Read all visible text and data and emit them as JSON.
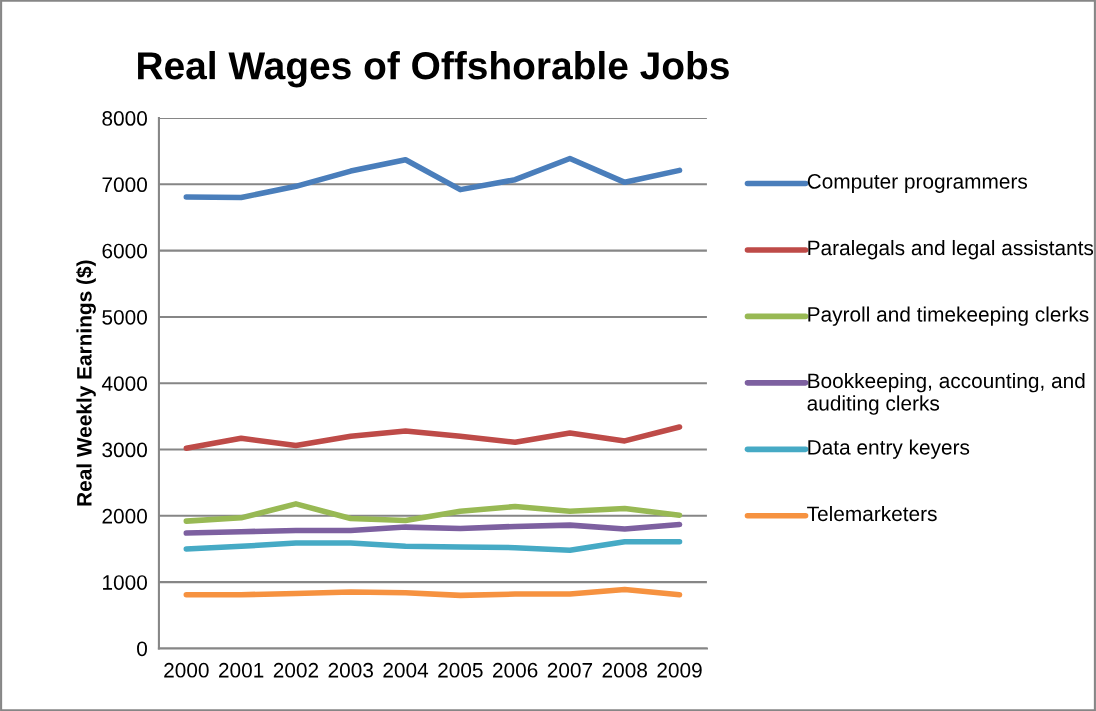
{
  "chart_data": {
    "type": "line",
    "title": "Real Wages of Offshorable Jobs",
    "ylabel": "Real Weekly Earnings ($)",
    "categories": [
      "2000",
      "2001",
      "2002",
      "2003",
      "2004",
      "2005",
      "2006",
      "2007",
      "2008",
      "2009"
    ],
    "ylim": [
      0,
      8000
    ],
    "yticks": [
      0,
      1000,
      2000,
      3000,
      4000,
      5000,
      6000,
      7000,
      8000
    ],
    "grid": "y",
    "legend": "right",
    "marker": "none",
    "line_style": "solid",
    "series": [
      {
        "name": "Computer programmers",
        "color": "#4a7ebb",
        "values": [
          6810,
          6800,
          6970,
          7200,
          7370,
          6920,
          7070,
          7390,
          7030,
          7210
        ]
      },
      {
        "name": "Paralegals and legal assistants",
        "color": "#be4b48",
        "values": [
          3020,
          3170,
          3060,
          3200,
          3280,
          3200,
          3110,
          3250,
          3130,
          3340
        ]
      },
      {
        "name": "Payroll and timekeeping clerks",
        "color": "#98b954",
        "values": [
          1920,
          1970,
          2180,
          1960,
          1930,
          2070,
          2140,
          2070,
          2110,
          2010
        ]
      },
      {
        "name": "Bookkeeping, accounting, and auditing clerks",
        "color": "#7d60a0",
        "values": [
          1740,
          1760,
          1780,
          1780,
          1830,
          1810,
          1840,
          1860,
          1800,
          1870
        ]
      },
      {
        "name": "Data entry keyers",
        "color": "#46aac5",
        "values": [
          1500,
          1540,
          1590,
          1590,
          1540,
          1530,
          1520,
          1480,
          1610,
          1610
        ]
      },
      {
        "name": "Telemarketers",
        "color": "#f69240",
        "values": [
          810,
          810,
          830,
          850,
          840,
          800,
          820,
          820,
          890,
          810
        ]
      }
    ]
  }
}
